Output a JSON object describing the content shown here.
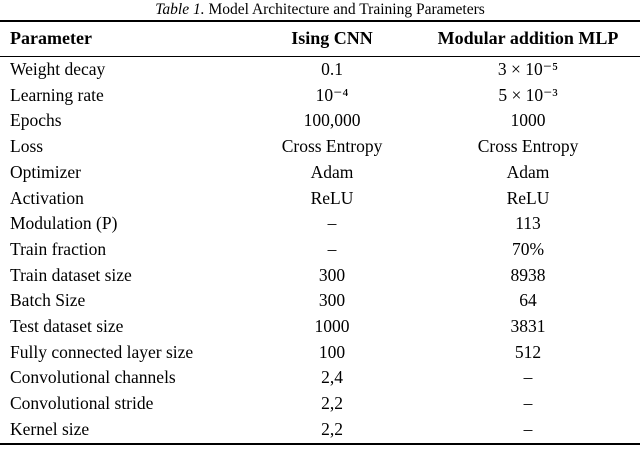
{
  "colors": {
    "background": "#ffffff",
    "text": "#000000",
    "rule": "#000000"
  },
  "caption": {
    "label": "Table 1.",
    "title": "Model Architecture and Training Parameters"
  },
  "table": {
    "headers": {
      "parameter": "Parameter",
      "ising_cnn": "Ising CNN",
      "modular_mlp": "Modular addition MLP"
    },
    "rows": [
      {
        "parameter": "Weight decay",
        "ising_cnn": "0.1",
        "modular_mlp": "3 × 10⁻⁵"
      },
      {
        "parameter": "Learning rate",
        "ising_cnn": "10⁻⁴",
        "modular_mlp": "5 × 10⁻³"
      },
      {
        "parameter": "Epochs",
        "ising_cnn": "100,000",
        "modular_mlp": "1000"
      },
      {
        "parameter": "Loss",
        "ising_cnn": "Cross Entropy",
        "modular_mlp": "Cross Entropy"
      },
      {
        "parameter": "Optimizer",
        "ising_cnn": "Adam",
        "modular_mlp": "Adam"
      },
      {
        "parameter": "Activation",
        "ising_cnn": "ReLU",
        "modular_mlp": "ReLU"
      },
      {
        "parameter": "Modulation (P)",
        "ising_cnn": "–",
        "modular_mlp": "113"
      },
      {
        "parameter": "Train fraction",
        "ising_cnn": "–",
        "modular_mlp": "70%"
      },
      {
        "parameter": "Train dataset size",
        "ising_cnn": "300",
        "modular_mlp": "8938"
      },
      {
        "parameter": "Batch Size",
        "ising_cnn": "300",
        "modular_mlp": "64"
      },
      {
        "parameter": "Test dataset size",
        "ising_cnn": "1000",
        "modular_mlp": "3831"
      },
      {
        "parameter": "Fully connected layer size",
        "ising_cnn": "100",
        "modular_mlp": "512"
      },
      {
        "parameter": "Convolutional channels",
        "ising_cnn": "2,4",
        "modular_mlp": "–"
      },
      {
        "parameter": "Convolutional stride",
        "ising_cnn": "2,2",
        "modular_mlp": "–"
      },
      {
        "parameter": "Kernel size",
        "ising_cnn": "2,2",
        "modular_mlp": "–"
      }
    ]
  }
}
